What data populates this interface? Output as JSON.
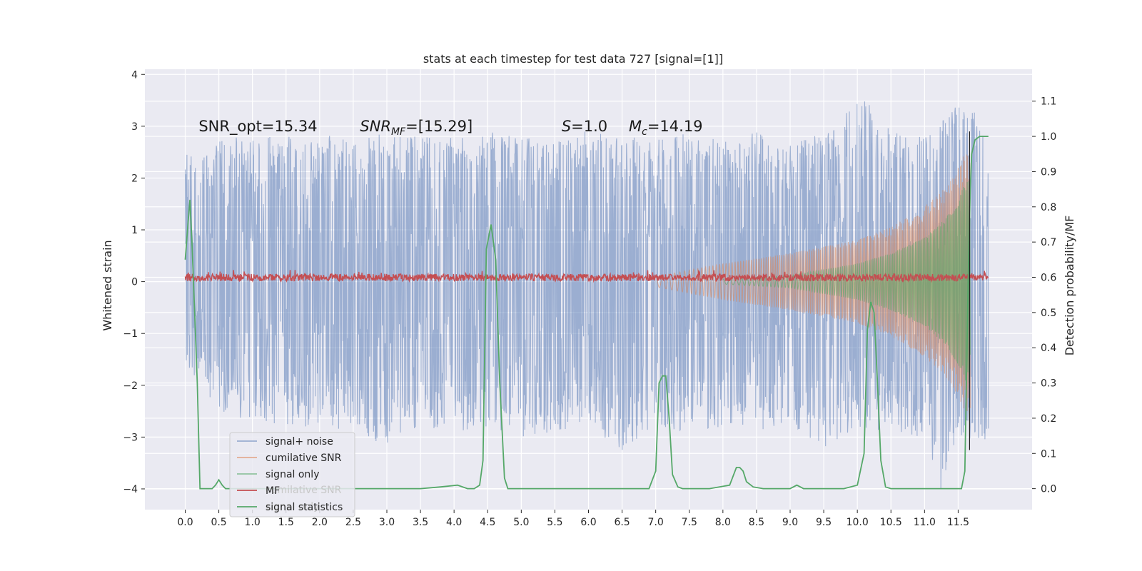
{
  "chart_data": {
    "type": "line",
    "title": "stats at each timestep for test data 727 [signal=[1]]",
    "ylabel": "Whitened strain",
    "y2label": "Detection probability/MF",
    "xlim": [
      -0.6,
      12.6
    ],
    "ylim": [
      -4.4,
      4.1
    ],
    "y2lim": [
      -0.0595,
      1.1906
    ],
    "x_ticks": [
      0.0,
      0.5,
      1.0,
      1.5,
      2.0,
      2.5,
      3.0,
      3.5,
      4.0,
      4.5,
      5.0,
      5.5,
      6.0,
      6.5,
      7.0,
      7.5,
      8.0,
      8.5,
      9.0,
      9.5,
      10.0,
      10.5,
      11.0,
      11.5
    ],
    "x_tick_labels": [
      "0.0",
      "0.5",
      "1.0",
      "1.5",
      "2.0",
      "2.5",
      "3.0",
      "3.5",
      "4.0",
      "4.5",
      "5.0",
      "5.5",
      "6.0",
      "6.5",
      "7.0",
      "7.5",
      "8.0",
      "8.5",
      "9.0",
      "9.5",
      "10.0",
      "10.5",
      "11.0",
      "11.5"
    ],
    "y_ticks": [
      4,
      3,
      2,
      1,
      0,
      -1,
      -2,
      -3,
      -4
    ],
    "y_tick_labels": [
      "4",
      "3",
      "2",
      "1",
      "0",
      "−1",
      "−2",
      "−3",
      "−4"
    ],
    "y2_ticks": [
      1.1,
      1.0,
      0.9,
      0.8,
      0.7,
      0.6,
      0.5,
      0.4,
      0.3,
      0.2,
      0.1,
      0.0
    ],
    "y2_tick_labels": [
      "1.1",
      "1.0",
      "0.9",
      "0.8",
      "0.7",
      "0.6",
      "0.5",
      "0.4",
      "0.3",
      "0.2",
      "0.1",
      "0.0"
    ],
    "grid": true,
    "legend_position": "lower-left",
    "annotations": [
      {
        "text": "SNR_opt=15.34",
        "x": 0.2,
        "y": 2.9
      },
      {
        "text": "SNR_MF=[15.29]",
        "x": 2.6,
        "y": 2.9
      },
      {
        "text": "S=1.0",
        "x": 5.6,
        "y": 2.9
      },
      {
        "text": "M_c=14.19",
        "x": 6.6,
        "y": 2.9
      }
    ],
    "vertical_marker_x": 11.67,
    "series": [
      {
        "name": "signal+ noise",
        "color": "#4c72b0",
        "axis": "left",
        "kind": "noise",
        "max_envelope": [
          [
            0.0,
            2.5
          ],
          [
            0.5,
            2.7
          ],
          [
            1.0,
            2.9
          ],
          [
            1.5,
            2.8
          ],
          [
            2.0,
            2.9
          ],
          [
            2.5,
            2.7
          ],
          [
            3.0,
            2.9
          ],
          [
            3.5,
            2.8
          ],
          [
            4.0,
            2.8
          ],
          [
            4.5,
            2.9
          ],
          [
            5.0,
            2.8
          ],
          [
            5.5,
            2.7
          ],
          [
            6.0,
            3.0
          ],
          [
            6.5,
            2.8
          ],
          [
            7.0,
            2.8
          ],
          [
            7.5,
            2.9
          ],
          [
            8.0,
            2.7
          ],
          [
            8.5,
            2.9
          ],
          [
            9.0,
            2.7
          ],
          [
            9.5,
            2.9
          ],
          [
            10.0,
            3.7
          ],
          [
            10.5,
            2.9
          ],
          [
            11.0,
            2.8
          ],
          [
            11.5,
            3.5
          ],
          [
            11.95,
            3.1
          ]
        ],
        "min_envelope": [
          [
            0.0,
            -1.6
          ],
          [
            0.5,
            -2.5
          ],
          [
            1.0,
            -2.7
          ],
          [
            1.5,
            -2.8
          ],
          [
            2.0,
            -2.8
          ],
          [
            2.5,
            -2.9
          ],
          [
            3.0,
            -3.2
          ],
          [
            3.5,
            -2.8
          ],
          [
            4.0,
            -2.9
          ],
          [
            4.5,
            -2.8
          ],
          [
            5.0,
            -3.0
          ],
          [
            5.5,
            -2.9
          ],
          [
            6.0,
            -2.8
          ],
          [
            6.5,
            -3.3
          ],
          [
            7.0,
            -2.8
          ],
          [
            7.5,
            -2.9
          ],
          [
            8.0,
            -2.8
          ],
          [
            8.5,
            -2.9
          ],
          [
            9.0,
            -2.8
          ],
          [
            9.5,
            -3.2
          ],
          [
            10.0,
            -2.8
          ],
          [
            10.5,
            -2.9
          ],
          [
            11.0,
            -3.0
          ],
          [
            11.25,
            -4.1
          ],
          [
            11.5,
            -3.0
          ],
          [
            11.95,
            -3.1
          ]
        ]
      },
      {
        "name": "cumilative SNR",
        "color": "#dd8452",
        "axis": "left",
        "kind": "chirp",
        "envelope": [
          [
            7.0,
            0.1
          ],
          [
            8.0,
            0.35
          ],
          [
            9.0,
            0.55
          ],
          [
            10.0,
            0.8
          ],
          [
            10.5,
            1.05
          ],
          [
            11.0,
            1.45
          ],
          [
            11.3,
            1.8
          ],
          [
            11.5,
            2.2
          ],
          [
            11.6,
            2.5
          ],
          [
            11.68,
            2.5
          ]
        ]
      },
      {
        "name": "signal only",
        "color": "#55a868",
        "axis": "left",
        "kind": "chirp",
        "envelope": [
          [
            8.0,
            0.05
          ],
          [
            9.0,
            0.12
          ],
          [
            10.0,
            0.35
          ],
          [
            10.5,
            0.55
          ],
          [
            11.0,
            0.85
          ],
          [
            11.3,
            1.2
          ],
          [
            11.5,
            1.6
          ],
          [
            11.6,
            1.9
          ],
          [
            11.68,
            2.0
          ]
        ]
      },
      {
        "name": "MF",
        "color": "#c44e52",
        "axis": "left",
        "kind": "residual",
        "baseline": 0.08,
        "amplitude": 0.07
      },
      {
        "name": "signal statistics",
        "color": "#55a868",
        "axis": "right",
        "kind": "line",
        "x": [
          0.0,
          0.04,
          0.07,
          0.1,
          0.14,
          0.18,
          0.22,
          0.3,
          0.4,
          0.45,
          0.5,
          0.55,
          0.6,
          0.7,
          0.8,
          1.0,
          1.5,
          2.0,
          2.5,
          3.0,
          3.5,
          3.8,
          4.05,
          4.2,
          4.3,
          4.38,
          4.43,
          4.48,
          4.55,
          4.62,
          4.68,
          4.75,
          4.8,
          4.85,
          5.0,
          5.5,
          6.0,
          6.5,
          6.9,
          7.0,
          7.05,
          7.1,
          7.15,
          7.2,
          7.25,
          7.33,
          7.4,
          7.5,
          7.8,
          8.1,
          8.2,
          8.25,
          8.3,
          8.35,
          8.45,
          8.6,
          9.0,
          9.1,
          9.2,
          9.5,
          9.8,
          10.0,
          10.1,
          10.15,
          10.2,
          10.25,
          10.3,
          10.35,
          10.42,
          10.5,
          11.0,
          11.2,
          11.4,
          11.5,
          11.55,
          11.6,
          11.65,
          11.68,
          11.7,
          11.75,
          11.82,
          11.88,
          11.95
        ],
        "y": [
          0.65,
          0.75,
          0.82,
          0.7,
          0.5,
          0.3,
          0.0,
          0.0,
          0.0,
          0.01,
          0.025,
          0.01,
          0.0,
          0.0,
          0.0,
          0.0,
          0.0,
          0.0,
          0.0,
          0.0,
          0.0,
          0.005,
          0.01,
          0.0,
          0.0,
          0.01,
          0.08,
          0.68,
          0.75,
          0.65,
          0.3,
          0.03,
          0.0,
          0.0,
          0.0,
          0.0,
          0.0,
          0.0,
          0.0,
          0.05,
          0.3,
          0.32,
          0.32,
          0.2,
          0.04,
          0.005,
          0.0,
          0.0,
          0.0,
          0.01,
          0.06,
          0.06,
          0.05,
          0.02,
          0.005,
          0.0,
          0.0,
          0.01,
          0.0,
          0.0,
          0.0,
          0.01,
          0.1,
          0.45,
          0.53,
          0.5,
          0.3,
          0.08,
          0.005,
          0.0,
          0.0,
          0.0,
          0.0,
          0.0,
          0.0,
          0.05,
          0.6,
          0.85,
          0.95,
          0.99,
          1.0,
          1.0,
          1.0
        ]
      }
    ]
  }
}
